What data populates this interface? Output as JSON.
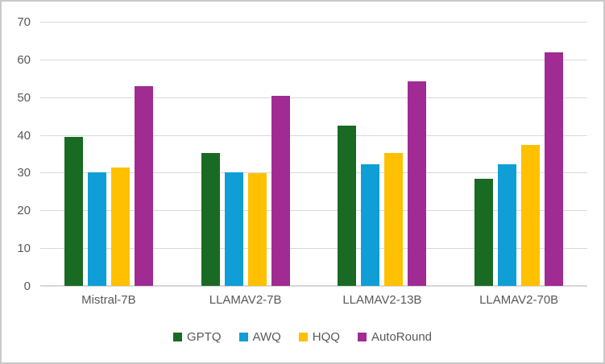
{
  "figure": {
    "background": "#ffffff",
    "border_color": "#c9c9c9",
    "gridline_color": "#d9d9d9",
    "axis_text_color": "#595959"
  },
  "chart_data": {
    "type": "bar",
    "title": "",
    "xlabel": "",
    "ylabel": "",
    "categories": [
      "Mistral-7B",
      "LLAMAV2-7B",
      "LLAMAV2-13B",
      "LLAMAV2-70B"
    ],
    "series": [
      {
        "name": "GPTQ",
        "color": "#196B24",
        "values": [
          39.5,
          35.3,
          42.5,
          28.3
        ]
      },
      {
        "name": "AWQ",
        "color": "#0F9ED5",
        "values": [
          30.0,
          30.0,
          32.2,
          32.2
        ]
      },
      {
        "name": "HQQ",
        "color": "#FFC000",
        "values": [
          31.3,
          29.8,
          35.3,
          37.4
        ]
      },
      {
        "name": "AutoRound",
        "color": "#A02B93",
        "values": [
          52.9,
          50.4,
          54.2,
          61.9
        ]
      }
    ],
    "ylim": [
      0,
      70
    ],
    "yticks": [
      0,
      10,
      20,
      30,
      40,
      50,
      60,
      70
    ],
    "grid": true,
    "legend_position": "bottom"
  }
}
